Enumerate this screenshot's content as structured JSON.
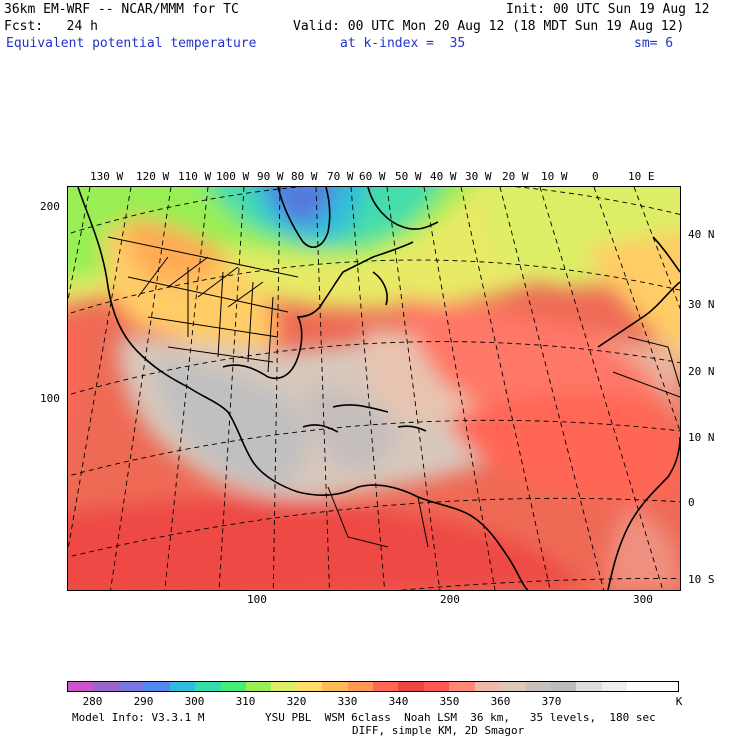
{
  "header": {
    "model_line": "36km EM-WRF -- NCAR/MMM for TC",
    "init_line": "Init: 00 UTC Sun 19 Aug 12",
    "fcst_line": "Fcst:   24 h",
    "valid_line": "Valid: 00 UTC Mon 20 Aug 12 (18 MDT Sun 19 Aug 12)",
    "field_name": "Equivalent potential temperature",
    "level_label": "at k-index =  35",
    "smooth_label": "sm= 6"
  },
  "map": {
    "top_longitude_labels": [
      "130 W",
      "120 W",
      "110 W",
      "100 W",
      "90 W",
      "80 W",
      "70 W",
      "60 W",
      "50 W",
      "40 W",
      "30 W",
      "20 W",
      "10 W",
      "0",
      "10 E"
    ],
    "right_latitude_labels": [
      "40 N",
      "30 N",
      "20 N",
      "10 N",
      "0",
      "10 S"
    ],
    "left_grid_labels": [
      "200",
      "100"
    ],
    "bottom_grid_labels": [
      "100",
      "200",
      "300"
    ]
  },
  "legend": {
    "colors": [
      "#cc55cc",
      "#9966cc",
      "#7777dd",
      "#5588ee",
      "#33bbdd",
      "#33ddaa",
      "#44ee77",
      "#99ee55",
      "#ddee66",
      "#ffdd66",
      "#ffbb55",
      "#ff9955",
      "#ff6655",
      "#ee4444",
      "#ff5555",
      "#ff8877",
      "#eebbaa",
      "#ddc8b8",
      "#c8c0bc",
      "#bcbcbc",
      "#dddddd",
      "#eeeeee",
      "#ffffff",
      "#ffffff"
    ],
    "tick_labels": [
      "280",
      "290",
      "300",
      "310",
      "320",
      "330",
      "340",
      "350",
      "360",
      "370",
      "K"
    ]
  },
  "footer": {
    "model_info": "Model Info: V3.3.1 M",
    "physics_line": "YSU PBL  WSM 6class  Noah LSM  36 km,   35 levels,  180 sec",
    "diff_line": "DIFF, simple KM, 2D Smagor"
  }
}
